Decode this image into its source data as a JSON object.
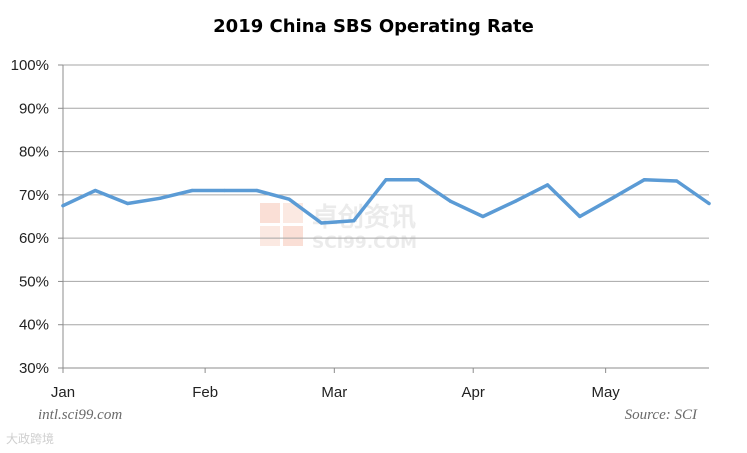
{
  "chart_data": {
    "type": "line",
    "title": "2019 China SBS Operating Rate",
    "xlabel": "",
    "ylabel": "",
    "ylim": [
      30,
      100
    ],
    "y_ticks": [
      30,
      40,
      50,
      60,
      70,
      80,
      90,
      100
    ],
    "y_tick_labels": [
      "30%",
      "40%",
      "50%",
      "60%",
      "70%",
      "80%",
      "90%",
      "100%"
    ],
    "x_ticks": [
      {
        "label": "Jan",
        "week": 1
      },
      {
        "label": "Feb",
        "week": 5.4
      },
      {
        "label": "Mar",
        "week": 9.4
      },
      {
        "label": "Apr",
        "week": 13.7
      },
      {
        "label": "May",
        "week": 17.8
      }
    ],
    "grid": true,
    "legend": "none",
    "series": [
      {
        "name": "SBS Operating Rate",
        "color": "#5b9bd5",
        "x": [
          1,
          2,
          3,
          4,
          5,
          6,
          7,
          8,
          9,
          10,
          11,
          12,
          13,
          14,
          15,
          16,
          17,
          18,
          19,
          20,
          21
        ],
        "values": [
          67.5,
          71,
          68,
          69.2,
          71,
          71,
          71,
          69,
          63.5,
          64,
          73.5,
          73.5,
          68.5,
          65,
          68.5,
          72.3,
          65,
          69.2,
          73.5,
          73.2,
          68
        ]
      }
    ]
  },
  "footer": {
    "website": "intl.sci99.com",
    "source": "Source: SCI"
  },
  "watermark": {
    "cn": "卓创资讯",
    "en": "SCI99.COM",
    "corner": "大政跨境"
  }
}
